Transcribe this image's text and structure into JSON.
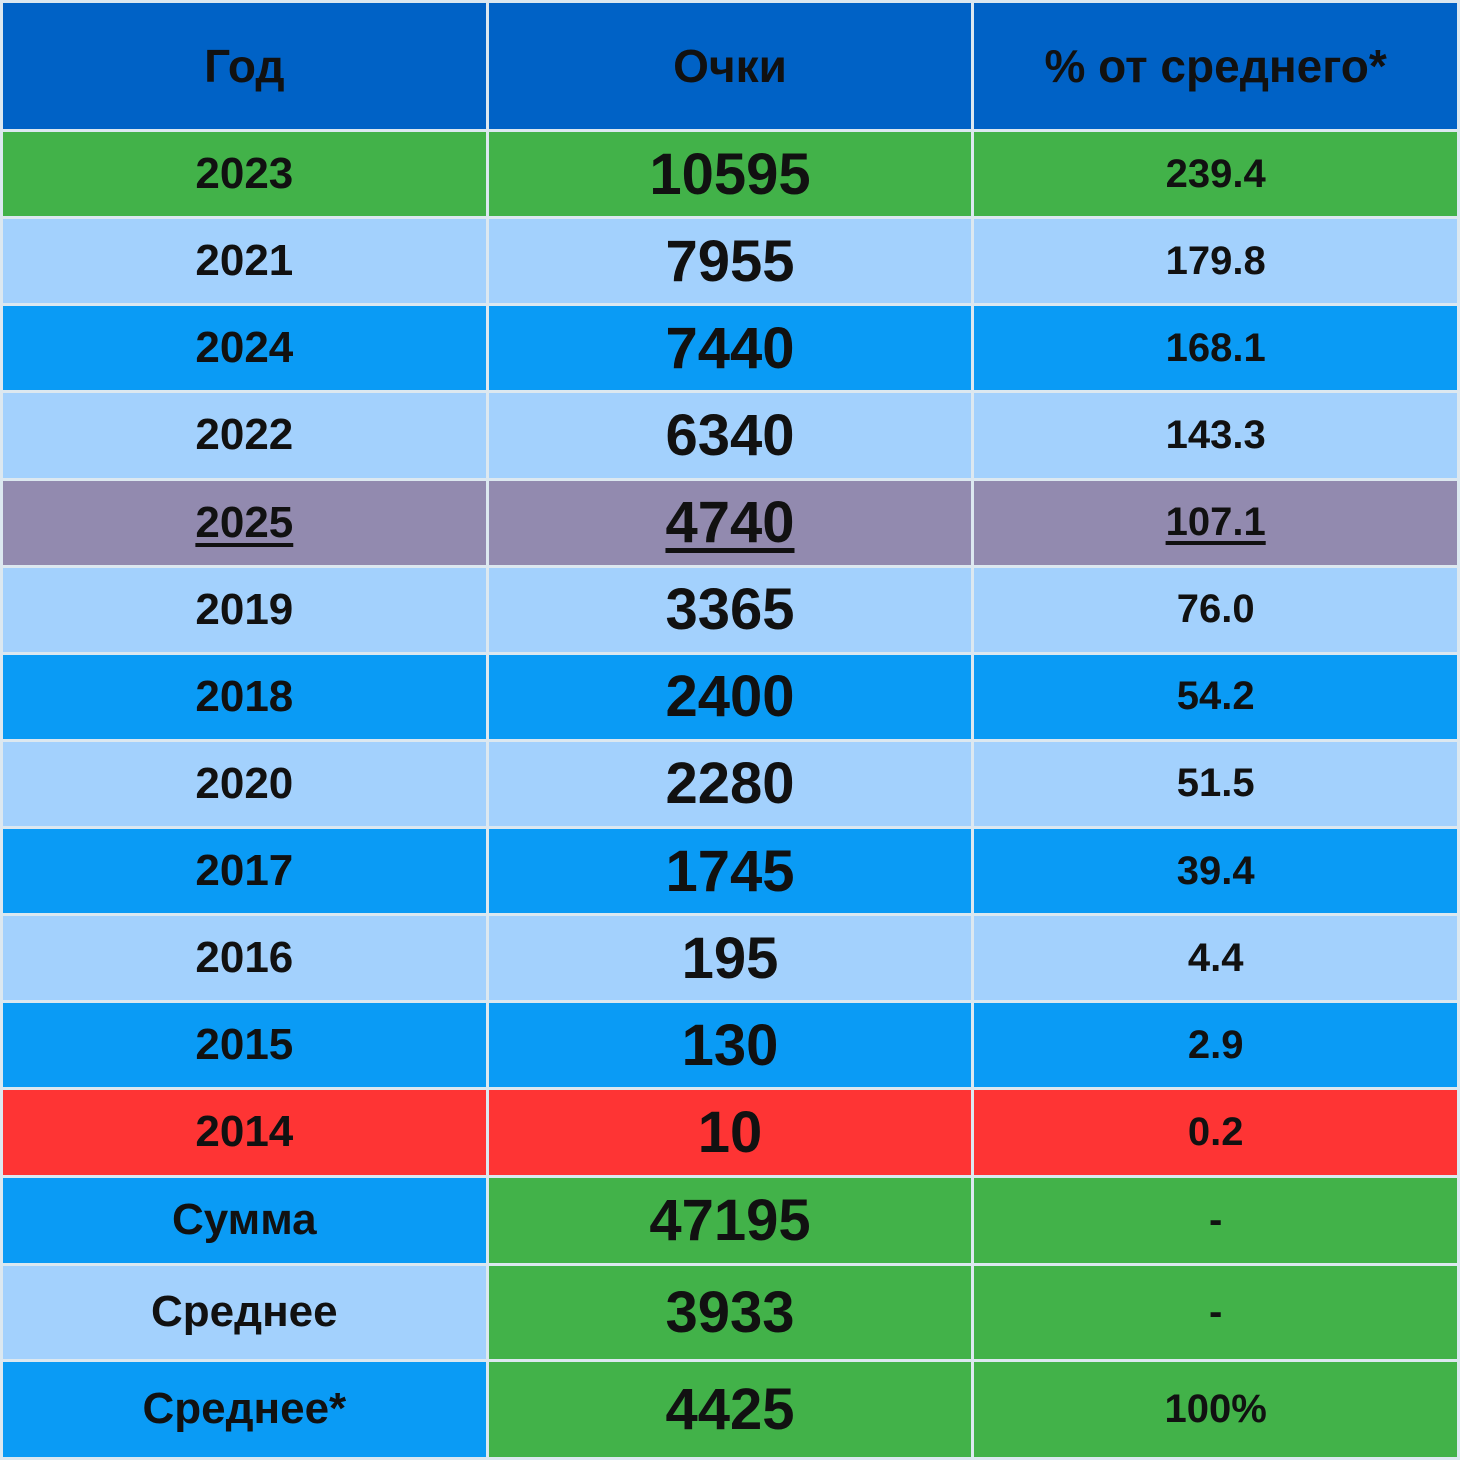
{
  "table": {
    "header": [
      "Год",
      "Очки",
      "% от среднего*"
    ],
    "rows": [
      [
        2023,
        10595,
        239.4
      ],
      [
        2021,
        7955,
        179.8
      ],
      [
        2024,
        7440,
        168.1
      ],
      [
        2022,
        6340,
        143.3
      ],
      [
        2025,
        4740,
        107.1
      ],
      [
        2019,
        3365,
        "76.0"
      ],
      [
        2018,
        2400,
        54.2
      ],
      [
        2020,
        2280,
        51.5
      ],
      [
        2017,
        1745,
        39.4
      ],
      [
        2016,
        195,
        4.4
      ],
      [
        2015,
        130,
        2.9
      ],
      [
        2014,
        10,
        0.2
      ],
      [
        "Сумма",
        47195,
        "-"
      ],
      [
        "Среднее",
        3933,
        "-"
      ],
      [
        "Среднее*",
        4425,
        "100%"
      ]
    ]
  }
}
